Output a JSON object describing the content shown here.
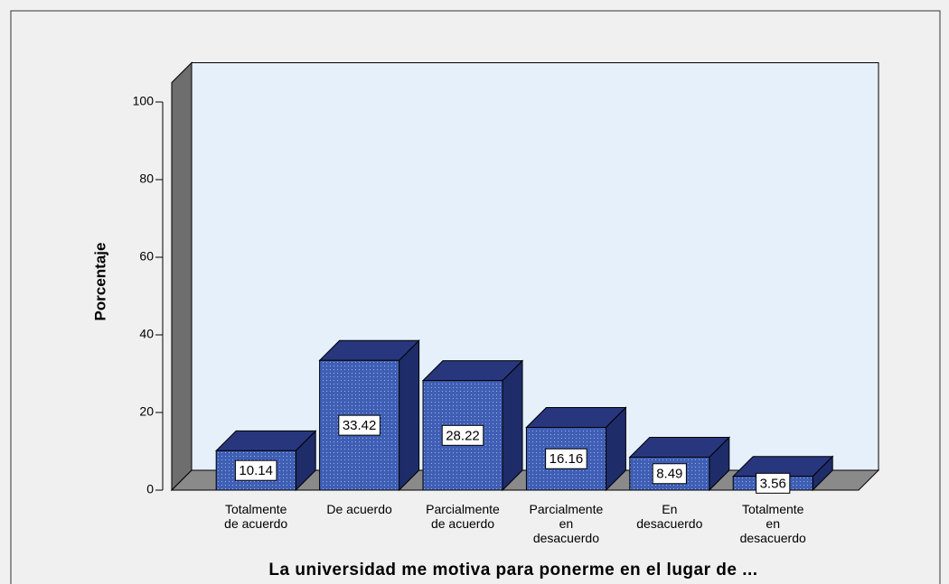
{
  "chart_data": {
    "type": "bar3d",
    "xlabel": "La universidad me motiva para ponerme en el lugar de ...",
    "ylabel": "Porcentaje",
    "categories": [
      "Totalmente\nde acuerdo",
      "De acuerdo",
      "Parcialmente\nde acuerdo",
      "Parcialmente\nen\ndesacuerdo",
      "En\ndesacuerdo",
      "Totalmente\nen\ndesacuerdo"
    ],
    "values": [
      10.14,
      33.42,
      28.22,
      16.16,
      8.49,
      3.56
    ],
    "color": "#3f5fb5",
    "ylim": [
      0,
      105
    ],
    "yticks": [
      0,
      20,
      40,
      60,
      80,
      100
    ]
  }
}
